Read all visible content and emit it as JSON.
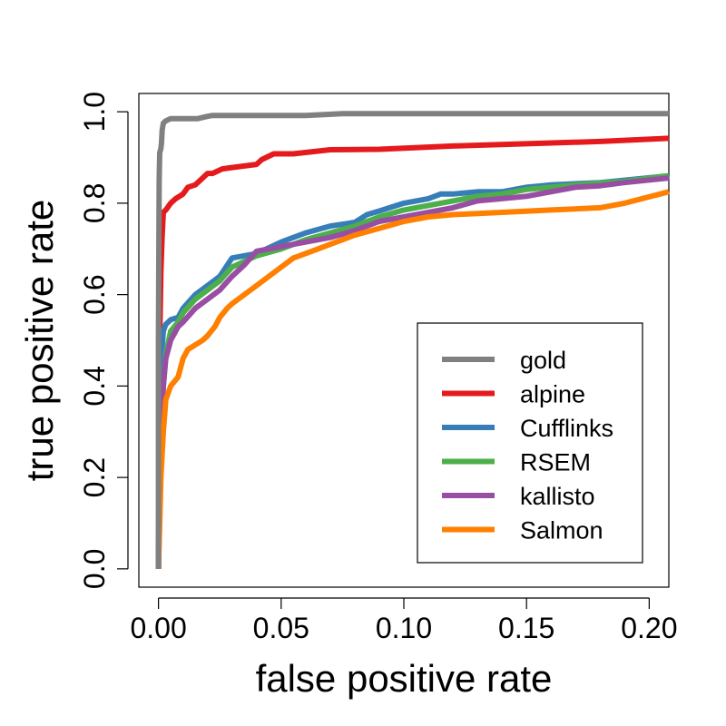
{
  "chart_data": {
    "type": "line",
    "xlabel": "false positive rate",
    "ylabel": "true positive rate",
    "xlim": [
      -0.008,
      0.208
    ],
    "ylim": [
      -0.04,
      1.04
    ],
    "x_ticks": [
      "0.00",
      "0.05",
      "0.10",
      "0.15",
      "0.20"
    ],
    "y_ticks": [
      "0.0",
      "0.2",
      "0.4",
      "0.6",
      "0.8",
      "1.0"
    ],
    "legend_position": "bottom-right",
    "grid": false,
    "series": [
      {
        "name": "gold",
        "color": "#808080",
        "x": [
          0,
          0,
          0.0003,
          0.0005,
          0.001,
          0.0012,
          0.0015,
          0.002,
          0.003,
          0.005,
          0.01,
          0.016,
          0.02,
          0.022,
          0.03,
          0.06,
          0.075,
          0.1,
          0.15,
          0.208
        ],
        "y": [
          0,
          0.5,
          0.85,
          0.91,
          0.92,
          0.93,
          0.96,
          0.975,
          0.98,
          0.985,
          0.985,
          0.985,
          0.99,
          0.992,
          0.992,
          0.992,
          0.996,
          0.996,
          0.996,
          0.996
        ]
      },
      {
        "name": "alpine",
        "color": "#e41a1c",
        "x": [
          0,
          0.0005,
          0.001,
          0.0015,
          0.002,
          0.003,
          0.005,
          0.007,
          0.01,
          0.012,
          0.015,
          0.017,
          0.02,
          0.022,
          0.026,
          0.03,
          0.04,
          0.042,
          0.047,
          0.055,
          0.07,
          0.09,
          0.12,
          0.15,
          0.18,
          0.208
        ],
        "y": [
          0,
          0.5,
          0.65,
          0.73,
          0.78,
          0.785,
          0.8,
          0.81,
          0.82,
          0.835,
          0.84,
          0.85,
          0.865,
          0.865,
          0.875,
          0.878,
          0.885,
          0.895,
          0.908,
          0.908,
          0.917,
          0.918,
          0.925,
          0.93,
          0.935,
          0.942
        ]
      },
      {
        "name": "Cufflinks",
        "color": "#377eb8",
        "x": [
          0,
          0.0005,
          0.001,
          0.002,
          0.003,
          0.005,
          0.008,
          0.01,
          0.015,
          0.02,
          0.025,
          0.03,
          0.04,
          0.05,
          0.06,
          0.07,
          0.08,
          0.085,
          0.09,
          0.1,
          0.11,
          0.115,
          0.12,
          0.13,
          0.14,
          0.15,
          0.16,
          0.18,
          0.208
        ],
        "y": [
          0,
          0.3,
          0.45,
          0.52,
          0.535,
          0.545,
          0.55,
          0.57,
          0.6,
          0.62,
          0.64,
          0.68,
          0.69,
          0.715,
          0.735,
          0.75,
          0.758,
          0.775,
          0.783,
          0.8,
          0.81,
          0.82,
          0.82,
          0.825,
          0.825,
          0.835,
          0.84,
          0.845,
          0.86
        ]
      },
      {
        "name": "RSEM",
        "color": "#4daf4a",
        "x": [
          0,
          0.0005,
          0.001,
          0.002,
          0.003,
          0.005,
          0.008,
          0.01,
          0.015,
          0.02,
          0.025,
          0.03,
          0.04,
          0.05,
          0.06,
          0.07,
          0.08,
          0.09,
          0.1,
          0.11,
          0.12,
          0.13,
          0.14,
          0.15,
          0.17,
          0.19,
          0.208
        ],
        "y": [
          0,
          0.2,
          0.3,
          0.4,
          0.47,
          0.52,
          0.54,
          0.56,
          0.59,
          0.61,
          0.63,
          0.66,
          0.685,
          0.7,
          0.72,
          0.735,
          0.75,
          0.77,
          0.785,
          0.795,
          0.805,
          0.815,
          0.82,
          0.83,
          0.84,
          0.848,
          0.86
        ]
      },
      {
        "name": "kallisto",
        "color": "#984ea3",
        "x": [
          0,
          0.0005,
          0.001,
          0.002,
          0.003,
          0.005,
          0.008,
          0.01,
          0.015,
          0.02,
          0.025,
          0.03,
          0.035,
          0.04,
          0.05,
          0.06,
          0.07,
          0.08,
          0.09,
          0.1,
          0.11,
          0.12,
          0.13,
          0.14,
          0.15,
          0.16,
          0.17,
          0.18,
          0.19,
          0.208
        ],
        "y": [
          0,
          0.15,
          0.3,
          0.4,
          0.46,
          0.5,
          0.53,
          0.54,
          0.57,
          0.59,
          0.61,
          0.64,
          0.665,
          0.695,
          0.705,
          0.715,
          0.725,
          0.74,
          0.76,
          0.77,
          0.78,
          0.79,
          0.805,
          0.81,
          0.815,
          0.825,
          0.835,
          0.838,
          0.845,
          0.855
        ]
      },
      {
        "name": "Salmon",
        "color": "#ff7f00",
        "x": [
          0,
          0.0005,
          0.001,
          0.002,
          0.003,
          0.005,
          0.008,
          0.01,
          0.012,
          0.015,
          0.018,
          0.02,
          0.023,
          0.025,
          0.028,
          0.03,
          0.035,
          0.04,
          0.045,
          0.05,
          0.055,
          0.06,
          0.065,
          0.07,
          0.075,
          0.08,
          0.09,
          0.1,
          0.11,
          0.12,
          0.14,
          0.16,
          0.18,
          0.19,
          0.208
        ],
        "y": [
          0,
          0.1,
          0.2,
          0.3,
          0.37,
          0.4,
          0.42,
          0.46,
          0.48,
          0.49,
          0.5,
          0.51,
          0.53,
          0.55,
          0.57,
          0.58,
          0.6,
          0.62,
          0.64,
          0.66,
          0.68,
          0.69,
          0.7,
          0.71,
          0.72,
          0.73,
          0.745,
          0.76,
          0.77,
          0.775,
          0.78,
          0.785,
          0.79,
          0.8,
          0.825
        ]
      }
    ]
  }
}
